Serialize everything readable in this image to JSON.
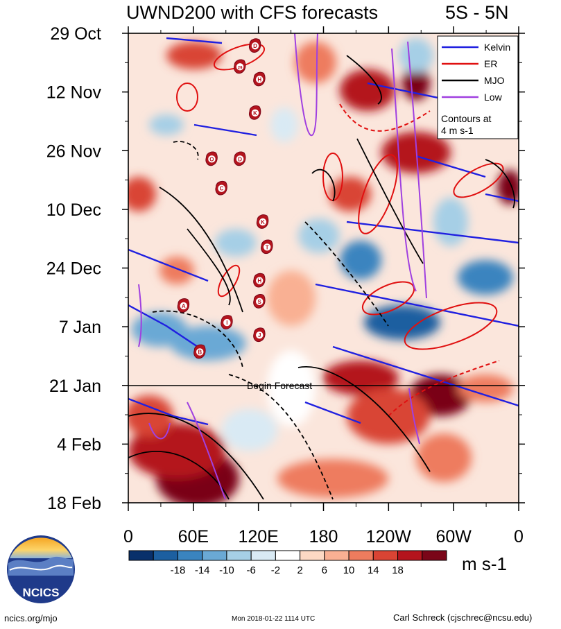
{
  "chart_data": {
    "type": "heatmap",
    "title": "UWND200 with CFS forecasts",
    "region_label": "5S - 5N",
    "y_ticks": [
      "29 Oct",
      "12 Nov",
      "26 Nov",
      "10 Dec",
      "24 Dec",
      "7 Jan",
      "21 Jan",
      "4 Feb",
      "18 Feb"
    ],
    "x_ticks": [
      "0",
      "60E",
      "120E",
      "180",
      "120W",
      "60W",
      "0"
    ],
    "forecast_start": "21 Jan",
    "forecast_label": "Begin Forecast",
    "legend": {
      "placement": "top-right",
      "entries": [
        {
          "name": "Kelvin",
          "color": "#2020e0"
        },
        {
          "name": "ER",
          "color": "#e01010"
        },
        {
          "name": "MJO",
          "color": "#000000"
        },
        {
          "name": "Low",
          "color": "#a040e0"
        }
      ],
      "note_line1": "Contours at",
      "note_line2": "4 m s-1"
    },
    "colorbar": {
      "labels": [
        "-18",
        "-14",
        "-10",
        "-6",
        "-2",
        "2",
        "6",
        "10",
        "14",
        "18"
      ],
      "colors": [
        "#08306b",
        "#1c5fa0",
        "#3a84bf",
        "#6aa9d5",
        "#a6cfe6",
        "#d9eaf4",
        "#ffffff",
        "#fdd9c4",
        "#f9b093",
        "#ee7c5e",
        "#d94434",
        "#b4141d",
        "#7a0518"
      ],
      "units": "m s-1"
    },
    "cyclones": [
      {
        "letter": "D",
        "lon": 117,
        "date": "01 Nov"
      },
      {
        "letter": "29",
        "lon": 103,
        "date": "06 Nov"
      },
      {
        "letter": "H",
        "lon": 121,
        "date": "09 Nov"
      },
      {
        "letter": "K",
        "lon": 117,
        "date": "17 Nov"
      },
      {
        "letter": "O",
        "lon": 77,
        "date": "28 Nov"
      },
      {
        "letter": "D",
        "lon": 103,
        "date": "28 Nov"
      },
      {
        "letter": "C",
        "lon": 86,
        "date": "05 Dec"
      },
      {
        "letter": "K",
        "lon": 124,
        "date": "13 Dec"
      },
      {
        "letter": "T",
        "lon": 128,
        "date": "19 Dec"
      },
      {
        "letter": "H",
        "lon": 121,
        "date": "27 Dec"
      },
      {
        "letter": "S",
        "lon": 121,
        "date": "01 Jan"
      },
      {
        "letter": "A",
        "lon": 51,
        "date": "02 Jan"
      },
      {
        "letter": "I",
        "lon": 91,
        "date": "06 Jan"
      },
      {
        "letter": "J",
        "lon": 121,
        "date": "09 Jan"
      },
      {
        "letter": "B",
        "lon": 66,
        "date": "13 Jan"
      }
    ]
  },
  "logo": {
    "text": "NCICS"
  },
  "footer": {
    "left": "ncics.org/mjo",
    "center": "Mon 2018-01-22 1114 UTC",
    "right": "Carl Schreck (cjschrec@ncsu.edu)"
  }
}
